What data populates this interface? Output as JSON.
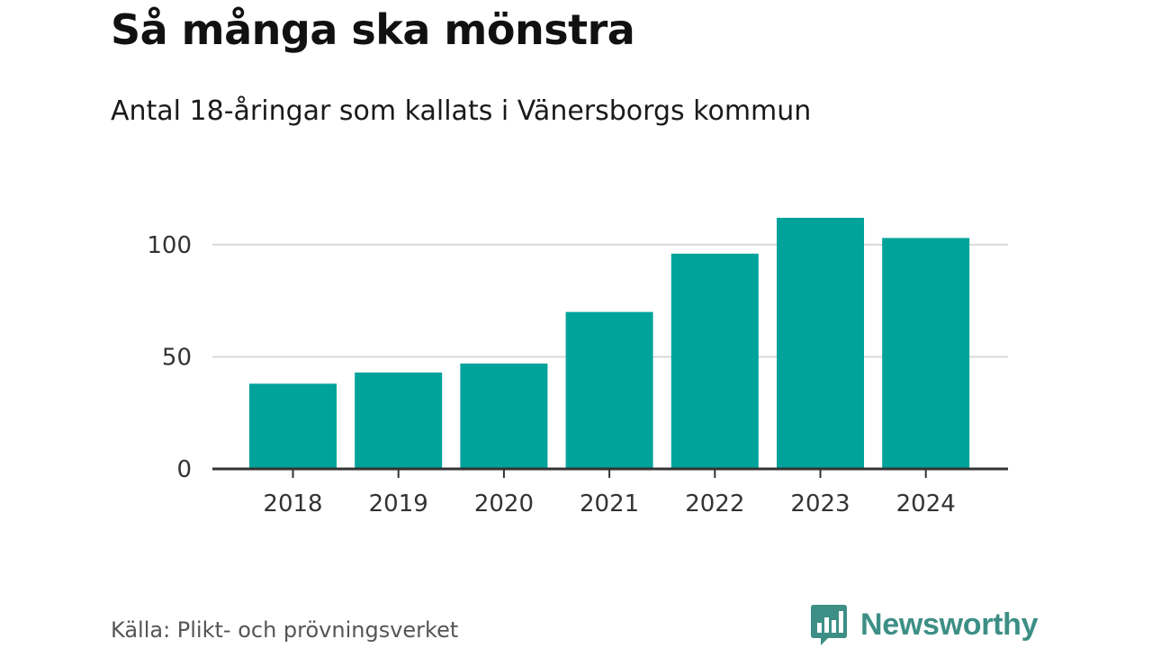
{
  "header": {
    "title": "Så många ska mönstra",
    "subtitle": "Antal 18-åringar som kallats i Vänersborgs kommun"
  },
  "footer": {
    "source": "Källa: Plikt- och prövningsverket",
    "brand": "Newsworthy"
  },
  "colors": {
    "bar": "#00a39a",
    "grid": "#d9d9d9",
    "axis": "#333333",
    "brand": "#3d8f86"
  },
  "icons": {
    "brand_logo": "newsworthy-bar-chart-icon"
  },
  "chart_data": {
    "type": "bar",
    "title": "Så många ska mönstra",
    "subtitle": "Antal 18-åringar som kallats i Vänersborgs kommun",
    "categories": [
      "2018",
      "2019",
      "2020",
      "2021",
      "2022",
      "2023",
      "2024"
    ],
    "values": [
      38,
      43,
      47,
      70,
      96,
      112,
      103
    ],
    "xlabel": "",
    "ylabel": "",
    "ylim": [
      0,
      112
    ],
    "yticks": [
      0,
      50,
      100
    ],
    "grid": true,
    "legend": "none"
  }
}
